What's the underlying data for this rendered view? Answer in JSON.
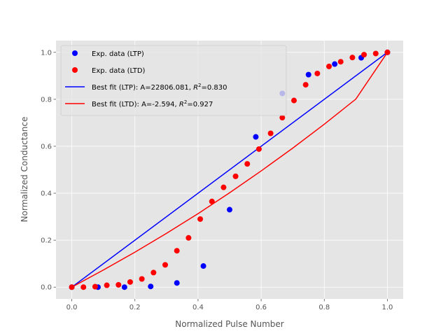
{
  "chart_data": {
    "type": "scatter",
    "xlabel": "Normalized Pulse Number",
    "ylabel": "Normalized Conductance",
    "xlim": [
      -0.05,
      1.05
    ],
    "ylim": [
      -0.05,
      1.05
    ],
    "xticks": [
      "0.0",
      "0.2",
      "0.4",
      "0.6",
      "0.8",
      "1.0"
    ],
    "yticks": [
      "0.0",
      "0.2",
      "0.4",
      "0.6",
      "0.8",
      "1.0"
    ],
    "grid": true,
    "legend_position": "top-left",
    "series": [
      {
        "name": "Exp. data (LTP)",
        "kind": "points",
        "color": "#0000ff",
        "x": [
          0.0,
          0.083,
          0.167,
          0.25,
          0.333,
          0.417,
          0.5,
          0.583,
          0.667,
          0.75,
          0.833,
          0.917,
          1.0
        ],
        "y": [
          0.0,
          0.0,
          0.0,
          0.003,
          0.018,
          0.09,
          0.33,
          0.64,
          0.825,
          0.905,
          0.95,
          0.977,
          1.0
        ]
      },
      {
        "name": "Exp. data (LTD)",
        "kind": "points",
        "color": "#ff0000",
        "x": [
          0.0,
          0.037,
          0.074,
          0.111,
          0.148,
          0.185,
          0.222,
          0.259,
          0.296,
          0.333,
          0.37,
          0.407,
          0.444,
          0.481,
          0.519,
          0.556,
          0.593,
          0.63,
          0.667,
          0.704,
          0.741,
          0.778,
          0.815,
          0.852,
          0.889,
          0.926,
          0.963,
          1.0
        ],
        "y": [
          0.0,
          0.0,
          0.002,
          0.008,
          0.01,
          0.022,
          0.035,
          0.062,
          0.095,
          0.155,
          0.21,
          0.29,
          0.365,
          0.425,
          0.472,
          0.525,
          0.588,
          0.655,
          0.722,
          0.795,
          0.862,
          0.91,
          0.94,
          0.96,
          0.978,
          0.99,
          0.995,
          1.0
        ]
      },
      {
        "name": "Best fit (LTP): A=22806.081, R²=0.830",
        "kind": "line",
        "color": "#0000ff",
        "x": [
          0.0,
          1.0
        ],
        "y": [
          0.0,
          1.0
        ]
      },
      {
        "name": "Best fit (LTD): A=-2.594, R²=0.927",
        "kind": "line",
        "color": "#ff0000",
        "x": [
          0.0,
          0.1,
          0.2,
          0.3,
          0.4,
          0.5,
          0.6,
          0.7,
          0.8,
          0.9,
          1.0
        ],
        "y": [
          0.0,
          0.073,
          0.149,
          0.229,
          0.313,
          0.402,
          0.495,
          0.592,
          0.694,
          0.801,
          1.0
        ]
      }
    ],
    "legend": [
      {
        "marker": "point",
        "color": "#0000ff",
        "parts": [
          {
            "t": "Exp. data (LTP)"
          }
        ]
      },
      {
        "marker": "point",
        "color": "#ff0000",
        "parts": [
          {
            "t": "Exp. data (LTD)"
          }
        ]
      },
      {
        "marker": "line",
        "color": "#0000ff",
        "parts": [
          {
            "t": "Best fit (LTP): A=22806.081, "
          },
          {
            "t": "R",
            "i": true
          },
          {
            "t": "2",
            "sup": true
          },
          {
            "t": "=0.830"
          }
        ]
      },
      {
        "marker": "line",
        "color": "#ff0000",
        "parts": [
          {
            "t": "Best fit (LTD): A=-2.594, "
          },
          {
            "t": "R",
            "i": true
          },
          {
            "t": "2",
            "sup": true
          },
          {
            "t": "=0.927"
          }
        ]
      }
    ]
  }
}
